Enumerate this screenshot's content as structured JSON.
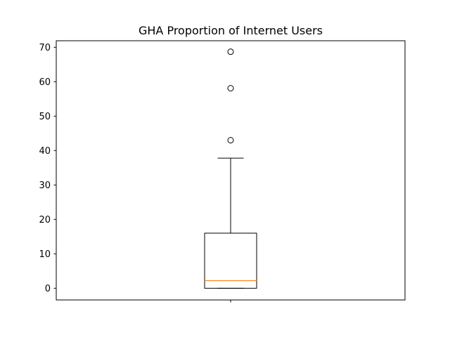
{
  "chart_data": {
    "type": "boxplot",
    "title": "GHA Proportion of Internet Users",
    "xlabel": "",
    "ylabel": "",
    "ylim": [
      -3.4,
      71.9
    ],
    "yticks": [
      0,
      10,
      20,
      30,
      40,
      50,
      60,
      70
    ],
    "grid": false,
    "legend": "none",
    "box": {
      "min": 0,
      "q1": 0,
      "median": 2.2,
      "q3": 16,
      "whisker_low": 0,
      "whisker_high": 37.8,
      "outliers": [
        43,
        58.1,
        68.7
      ]
    },
    "colors": {
      "box": "#000000",
      "median": "#ff7f0e",
      "axis": "#000000"
    }
  }
}
